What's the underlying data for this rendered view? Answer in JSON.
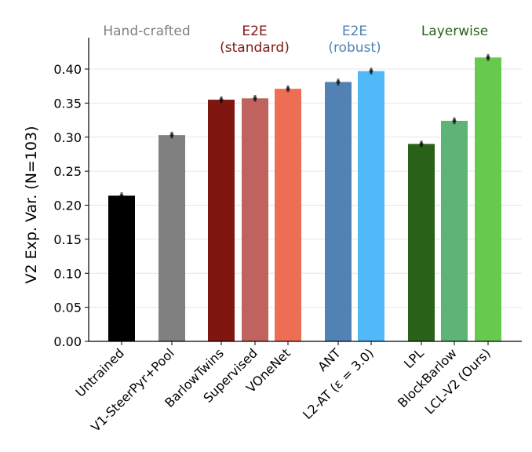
{
  "chart_data": {
    "type": "bar",
    "title": "",
    "xlabel": "",
    "ylabel": "V2 Exp. Var. (N=103)",
    "ylim": [
      0,
      0.44
    ],
    "yticks": [
      "0.00",
      "0.05",
      "0.10",
      "0.15",
      "0.20",
      "0.25",
      "0.30",
      "0.35",
      "0.40"
    ],
    "grid": "horizontal",
    "categories": [
      "Untrained",
      "V1-SteerPyr+Pool",
      "BarlowTwins",
      "Supervised",
      "VOneNet",
      "ANT",
      "L2-AT (ε = 3.0)",
      "LPL",
      "BlockBarlow",
      "LCL-V2 (Ours)"
    ],
    "values": [
      0.214,
      0.303,
      0.355,
      0.357,
      0.371,
      0.381,
      0.397,
      0.29,
      0.324,
      0.417
    ],
    "colors": [
      "#000000",
      "#808080",
      "#7f1710",
      "#c0635e",
      "#ee6e53",
      "#5281b3",
      "#52b9f9",
      "#2a6119",
      "#5eb377",
      "#67c94e"
    ],
    "groups": [
      {
        "label_line1": "Hand-crafted",
        "label_line2": "",
        "color": "#808080",
        "members": [
          0,
          1
        ]
      },
      {
        "label_line1": "E2E",
        "label_line2": "(standard)",
        "color": "#7f1710",
        "members": [
          2,
          3,
          4
        ]
      },
      {
        "label_line1": "E2E",
        "label_line2": "(robust)",
        "color": "#5281b3",
        "members": [
          5,
          6
        ]
      },
      {
        "label_line1": "Layerwise",
        "label_line2": "",
        "color": "#2a6119",
        "members": [
          7,
          8,
          9
        ]
      }
    ]
  }
}
